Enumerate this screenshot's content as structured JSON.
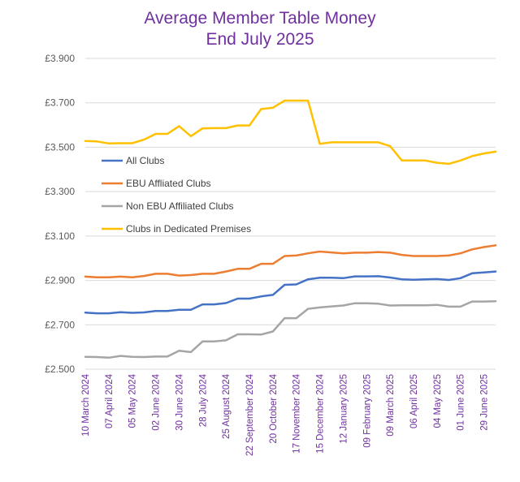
{
  "chart_data": {
    "type": "line",
    "title_line1": "Average Member Table Money",
    "title_line2": "End July 2025",
    "xlabel": "",
    "ylabel": "",
    "ylim": [
      2.5,
      3.9
    ],
    "yticks": [
      "£2.500",
      "£2.700",
      "£2.900",
      "£3.100",
      "£3.300",
      "£3.500",
      "£3.700",
      "£3.900"
    ],
    "grid": true,
    "legend_position": "left, inside plot area",
    "x": [
      "10 March 2024",
      "24 March 2024",
      "07 April 2024",
      "21 April 2024",
      "05 May 2024",
      "19 May 2024",
      "02 June 2024",
      "16 June 2024",
      "30 June 2024",
      "14 July 2024",
      "28 July 2024",
      "11 August 2024",
      "25 August 2024",
      "08 September 2024",
      "22 September 2024",
      "06 October 2024",
      "20 October 2024",
      "03 November 2024",
      "17 November 2024",
      "01 December 2024",
      "15 December 2024",
      "29 December 2024",
      "12 January 2025",
      "26 January 2025",
      "09 February 2025",
      "23 February 2025",
      "09 March 2025",
      "23 March 2025",
      "06 April 2025",
      "20 April 2025",
      "04 May 2025",
      "18 May 2025",
      "01 June 2025",
      "15 June 2025",
      "29 June 2025",
      "13 July 2025"
    ],
    "x_tick_labels": [
      "10 March 2024",
      "07 April 2024",
      "05 May 2024",
      "02 June 2024",
      "30 June 2024",
      "28 July 2024",
      "25 August 2024",
      "22 September 2024",
      "20 October 2024",
      "17 November 2024",
      "15 December 2024",
      "12 January 2025",
      "09 February 2025",
      "09 March 2025",
      "06 April 2025",
      "04 May 2025",
      "01 June 2025",
      "29 June 2025"
    ],
    "series": [
      {
        "name": "All Clubs",
        "color": "#4472C4",
        "values": [
          2.755,
          2.752,
          2.752,
          2.757,
          2.754,
          2.756,
          2.762,
          2.762,
          2.768,
          2.768,
          2.792,
          2.792,
          2.798,
          2.818,
          2.818,
          2.828,
          2.835,
          2.88,
          2.882,
          2.905,
          2.912,
          2.912,
          2.91,
          2.918,
          2.918,
          2.919,
          2.913,
          2.905,
          2.903,
          2.905,
          2.906,
          2.902,
          2.91,
          2.932,
          2.936,
          2.94
        ]
      },
      {
        "name": "EBU Affliated Clubs",
        "color": "#ED7D31",
        "values": [
          2.917,
          2.914,
          2.914,
          2.917,
          2.914,
          2.92,
          2.93,
          2.93,
          2.922,
          2.924,
          2.93,
          2.93,
          2.94,
          2.952,
          2.952,
          2.975,
          2.975,
          3.01,
          3.012,
          3.022,
          3.03,
          3.026,
          3.022,
          3.025,
          3.025,
          3.028,
          3.025,
          3.015,
          3.01,
          3.01,
          3.01,
          3.012,
          3.022,
          3.04,
          3.05,
          3.058
        ]
      },
      {
        "name": "Non EBU Affiliated Clubs",
        "color": "#A5A5A5",
        "values": [
          2.556,
          2.555,
          2.552,
          2.56,
          2.556,
          2.555,
          2.557,
          2.557,
          2.583,
          2.577,
          2.625,
          2.625,
          2.63,
          2.657,
          2.657,
          2.656,
          2.67,
          2.73,
          2.73,
          2.772,
          2.778,
          2.783,
          2.787,
          2.797,
          2.797,
          2.795,
          2.787,
          2.788,
          2.788,
          2.788,
          2.79,
          2.782,
          2.782,
          2.805,
          2.805,
          2.806
        ]
      },
      {
        "name": "Clubs in Dedicated Premises",
        "color": "#FFC000",
        "values": [
          3.528,
          3.526,
          3.517,
          3.518,
          3.518,
          3.534,
          3.56,
          3.56,
          3.595,
          3.55,
          3.585,
          3.586,
          3.586,
          3.598,
          3.598,
          3.672,
          3.678,
          3.71,
          3.71,
          3.71,
          3.515,
          3.522,
          3.522,
          3.522,
          3.522,
          3.522,
          3.505,
          3.44,
          3.44,
          3.44,
          3.43,
          3.425,
          3.44,
          3.46,
          3.472,
          3.48
        ]
      }
    ]
  }
}
